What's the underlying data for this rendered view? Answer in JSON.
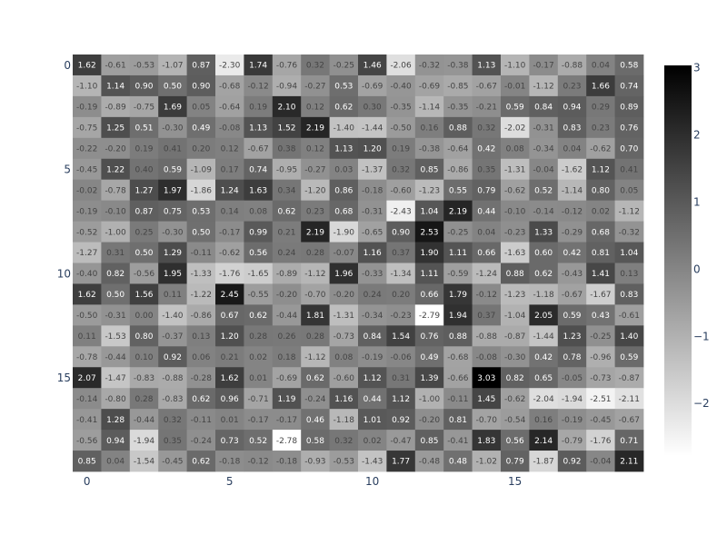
{
  "chart_data": {
    "type": "heatmap",
    "title": "",
    "xlabel": "",
    "ylabel": "",
    "colorscale": "Greys",
    "colorscale_colors": [
      "#ffffff",
      "#000000"
    ],
    "zmin": -2.79,
    "zmax": 3.03,
    "x_range": [
      0,
      19
    ],
    "y_range": [
      0,
      19
    ],
    "y_reversed": true,
    "x_tick_values": [
      0,
      5,
      10,
      15
    ],
    "x_tick_labels": [
      "0",
      "5",
      "10",
      "15"
    ],
    "y_tick_values": [
      0,
      5,
      10,
      15
    ],
    "y_tick_labels": [
      "0",
      "5",
      "10",
      "15"
    ],
    "colorbar_tick_values": [
      3,
      2,
      1,
      0,
      -1,
      -2
    ],
    "colorbar_tick_labels": [
      "3",
      "2",
      "1",
      "0",
      "−1",
      "−2"
    ],
    "z": [
      [
        1.62,
        -0.61,
        -0.53,
        -1.07,
        0.87,
        -2.3,
        1.74,
        -0.76,
        0.32,
        -0.25,
        1.46,
        -2.06,
        -0.32,
        -0.38,
        1.13,
        -1.1,
        -0.17,
        -0.88,
        0.04,
        0.58
      ],
      [
        -1.1,
        1.14,
        0.9,
        0.5,
        0.9,
        -0.68,
        -0.12,
        -0.94,
        -0.27,
        0.53,
        -0.69,
        -0.4,
        -0.69,
        -0.85,
        -0.67,
        -0.01,
        -1.12,
        0.23,
        1.66,
        0.74
      ],
      [
        -0.19,
        -0.89,
        -0.75,
        1.69,
        0.05,
        -0.64,
        0.19,
        2.1,
        0.12,
        0.62,
        0.3,
        -0.35,
        -1.14,
        -0.35,
        -0.21,
        0.59,
        0.84,
        0.94,
        0.29,
        0.89
      ],
      [
        -0.75,
        1.25,
        0.51,
        -0.3,
        0.49,
        -0.08,
        1.13,
        1.52,
        2.19,
        -1.4,
        -1.44,
        -0.5,
        0.16,
        0.88,
        0.32,
        -2.02,
        -0.31,
        0.83,
        0.23,
        0.76
      ],
      [
        -0.22,
        -0.2,
        0.19,
        0.41,
        0.2,
        0.12,
        -0.67,
        0.38,
        0.12,
        1.13,
        1.2,
        0.19,
        -0.38,
        -0.64,
        0.42,
        0.08,
        -0.34,
        0.04,
        -0.62,
        0.7
      ],
      [
        -0.45,
        1.22,
        0.4,
        0.59,
        -1.09,
        0.17,
        0.74,
        -0.95,
        -0.27,
        0.03,
        -1.37,
        0.32,
        0.85,
        -0.86,
        0.35,
        -1.31,
        -0.04,
        -1.62,
        1.12,
        0.41
      ],
      [
        -0.02,
        -0.78,
        1.27,
        1.97,
        -1.86,
        1.24,
        1.63,
        0.34,
        -1.2,
        0.86,
        -0.18,
        -0.6,
        -1.23,
        0.55,
        0.79,
        -0.62,
        0.52,
        -1.14,
        0.8,
        0.05
      ],
      [
        -0.19,
        -0.1,
        0.87,
        0.75,
        0.53,
        0.14,
        0.08,
        0.62,
        0.23,
        0.68,
        -0.31,
        -2.43,
        1.04,
        2.19,
        0.44,
        -0.1,
        -0.14,
        -0.12,
        0.02,
        -1.12
      ],
      [
        -0.52,
        -1.0,
        0.25,
        -0.3,
        0.5,
        -0.17,
        0.99,
        0.21,
        2.19,
        -1.9,
        -0.65,
        0.9,
        2.53,
        -0.25,
        0.04,
        -0.23,
        1.33,
        -0.29,
        0.68,
        -0.32
      ],
      [
        -1.27,
        0.31,
        0.5,
        1.29,
        -0.11,
        -0.62,
        0.56,
        0.24,
        0.28,
        -0.07,
        1.16,
        0.37,
        1.9,
        1.11,
        0.66,
        -1.63,
        0.6,
        0.42,
        0.81,
        1.04
      ],
      [
        -0.4,
        0.82,
        -0.56,
        1.95,
        -1.33,
        -1.76,
        -1.65,
        -0.89,
        -1.12,
        1.96,
        -0.33,
        -1.34,
        1.11,
        -0.59,
        -1.24,
        0.88,
        0.62,
        -0.43,
        1.41,
        0.13
      ],
      [
        1.62,
        0.5,
        1.56,
        0.11,
        -1.22,
        2.45,
        -0.55,
        -0.2,
        -0.7,
        -0.2,
        0.24,
        0.2,
        0.66,
        1.79,
        -0.12,
        -1.23,
        -1.18,
        -0.67,
        -1.67,
        0.83
      ],
      [
        -0.5,
        -0.31,
        0.0,
        -1.4,
        -0.86,
        0.67,
        0.62,
        -0.44,
        1.81,
        -1.31,
        -0.34,
        -0.23,
        -2.79,
        1.94,
        0.37,
        -1.04,
        2.05,
        0.59,
        0.43,
        -0.61
      ],
      [
        0.11,
        -1.53,
        0.8,
        -0.37,
        0.13,
        1.2,
        0.28,
        0.26,
        0.28,
        -0.73,
        0.84,
        1.54,
        0.76,
        0.88,
        -0.88,
        -0.87,
        -1.44,
        1.23,
        -0.25,
        1.4
      ],
      [
        -0.78,
        -0.44,
        0.1,
        0.92,
        0.06,
        0.21,
        0.02,
        0.18,
        -1.12,
        0.08,
        -0.19,
        -0.06,
        0.49,
        -0.68,
        -0.08,
        -0.3,
        0.42,
        0.78,
        -0.96,
        0.59
      ],
      [
        2.07,
        -1.47,
        -0.83,
        -0.88,
        -0.28,
        1.62,
        0.01,
        -0.69,
        0.62,
        -0.6,
        1.12,
        0.31,
        1.39,
        -0.66,
        3.03,
        0.82,
        0.65,
        -0.05,
        -0.73,
        -0.87
      ],
      [
        -0.14,
        -0.8,
        0.28,
        -0.83,
        0.62,
        0.96,
        -0.71,
        1.19,
        -0.24,
        1.16,
        0.44,
        1.12,
        -1.0,
        -0.11,
        1.45,
        -0.62,
        -2.04,
        -1.94,
        -2.51,
        -2.11
      ],
      [
        -0.41,
        1.28,
        -0.44,
        0.32,
        -0.11,
        0.01,
        -0.17,
        -0.17,
        0.46,
        -1.18,
        1.01,
        0.92,
        -0.2,
        0.81,
        -0.7,
        -0.54,
        0.16,
        -0.19,
        -0.45,
        -0.67
      ],
      [
        -0.56,
        0.94,
        -1.94,
        0.35,
        -0.24,
        0.73,
        0.52,
        -2.78,
        0.58,
        0.32,
        0.02,
        -0.47,
        0.85,
        -0.41,
        1.83,
        0.56,
        2.14,
        -0.79,
        -1.76,
        0.71
      ],
      [
        0.85,
        0.04,
        -1.54,
        -0.45,
        0.62,
        -0.18,
        -0.12,
        -0.18,
        -0.93,
        -0.53,
        -1.43,
        1.77,
        -0.48,
        0.48,
        -1.02,
        0.79,
        -1.87,
        0.92,
        -0.04,
        2.11
      ]
    ]
  }
}
